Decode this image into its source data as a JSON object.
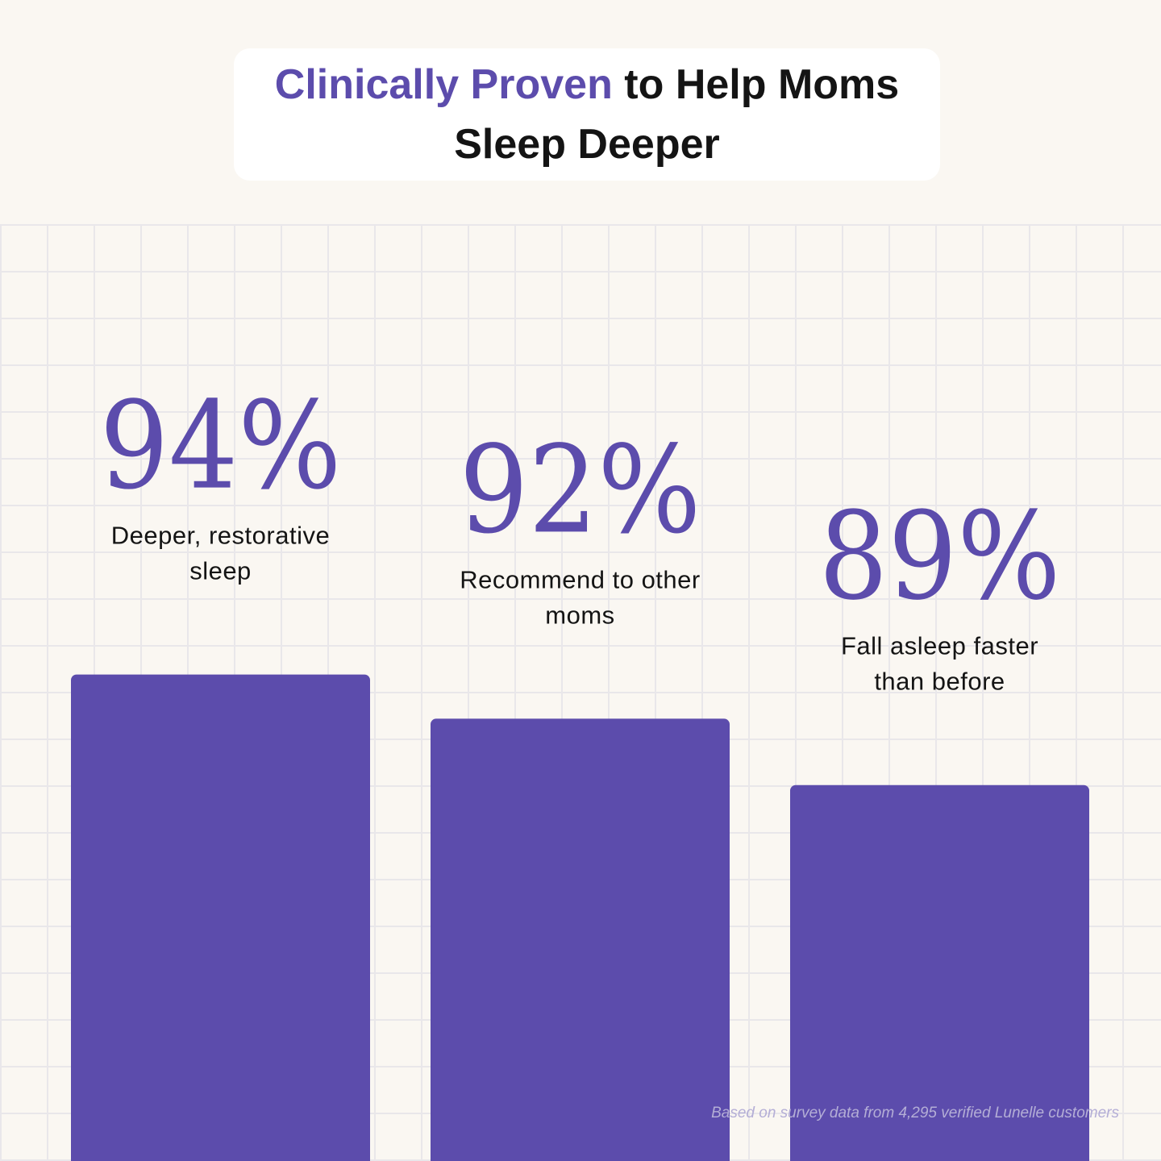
{
  "title": {
    "accent": "Clinically Proven",
    "rest": " to Help Moms",
    "line2": "Sleep Deeper"
  },
  "colors": {
    "accent": "#5c4cac",
    "background": "#faf7f2",
    "text": "#141414",
    "grid": "#e9e7ea"
  },
  "chart_data": {
    "type": "bar",
    "title": "Clinically Proven to Help Moms Sleep Deeper",
    "categories": [
      "Deeper, restorative sleep",
      "Recommend to other moms",
      "Fall asleep faster than before"
    ],
    "values": [
      94,
      92,
      89
    ],
    "value_labels": [
      "94%",
      "92%",
      "89%"
    ],
    "label_lines": [
      [
        "Deeper, restorative",
        "sleep"
      ],
      [
        "Recommend to other",
        "moms"
      ],
      [
        "Fall asleep faster",
        "than before"
      ]
    ],
    "ylim": [
      72,
      100
    ],
    "unit": "%",
    "xlabel": "",
    "ylabel": "",
    "legend": "none",
    "grid": true
  },
  "footnote": "Based on survey data from 4,295 verified Lunelle customers"
}
